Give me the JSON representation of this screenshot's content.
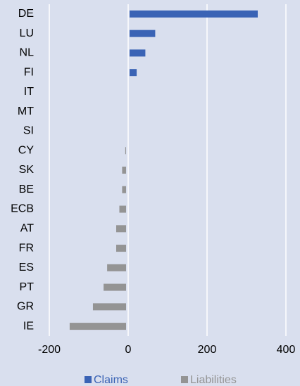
{
  "chart_data": {
    "type": "bar",
    "orientation": "horizontal",
    "categories": [
      "DE",
      "LU",
      "NL",
      "FI",
      "IT",
      "MT",
      "SI",
      "CY",
      "SK",
      "BE",
      "ECB",
      "AT",
      "FR",
      "ES",
      "PT",
      "GR",
      "IE"
    ],
    "series": [
      {
        "name": "Claims",
        "color": "#3a63b5",
        "values": [
          325,
          65,
          40,
          18,
          0,
          0,
          0,
          0,
          0,
          0,
          0,
          0,
          0,
          0,
          0,
          0,
          0
        ]
      },
      {
        "name": "Liabilities",
        "color": "#949494",
        "values": [
          0,
          0,
          0,
          0,
          0,
          0,
          0,
          -2,
          -10,
          -10,
          -17,
          -25,
          -25,
          -48,
          -57,
          -84,
          -143
        ]
      }
    ],
    "xlim": [
      -200,
      400
    ],
    "xticks": [
      -200,
      0,
      200,
      400
    ],
    "grid": true,
    "legend": "bottom"
  }
}
